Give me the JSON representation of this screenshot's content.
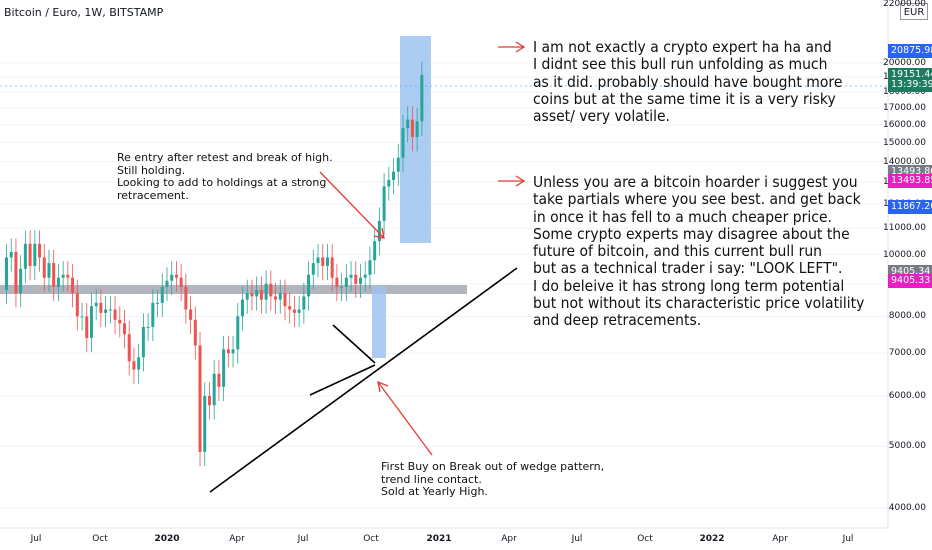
{
  "chart_data": {
    "type": "candlestick",
    "title": "Bitcoin / Euro, 1W, BITSTAMP",
    "currency": "EUR",
    "yscale": "log",
    "ylim": [
      3700,
      23000
    ],
    "y_ticks": [
      4000,
      5000,
      6000,
      7000,
      8000,
      9000,
      10000,
      11000,
      12000,
      13000,
      14000,
      15000,
      16000,
      17000,
      18000,
      19000,
      20000
    ],
    "y_tick_labels": [
      "4000.00",
      "5000.00",
      "6000.00",
      "7000.00",
      "8000.00",
      "9000.00",
      "10000.00",
      "11000.00",
      "12000.00",
      "13000.00",
      "14000.00",
      "15000.00",
      "16000.00",
      "17000.00",
      "18000.00",
      "19000.00",
      "20000.00"
    ],
    "x_ticks": [
      "Jul",
      "Oct",
      "2020",
      "Apr",
      "Jul",
      "Oct",
      "2021",
      "Apr",
      "Jul",
      "Oct",
      "2022",
      "Apr",
      "Jul"
    ],
    "colors": {
      "up": "#26a69a",
      "down": "#ef5350",
      "trend": "#000000",
      "support": "#b2b5be",
      "box": "#9ec3ef",
      "arrow": "#e53935",
      "dashed": "#2196f3"
    },
    "price_labels": [
      {
        "value": "20875.98",
        "bg": "#2962ff",
        "fg": "#ffffff",
        "price": 20876
      },
      {
        "value": "19151.44",
        "bg": "#1b7c60",
        "fg": "#ffffff",
        "price": 19151
      },
      {
        "value": "13:39:39",
        "bg": "#1b7c60",
        "fg": "#ffffff",
        "price": 18450
      },
      {
        "value": "13493.86",
        "bg": "#787b86",
        "fg": "#ffffff",
        "price": 13494
      },
      {
        "value": "13493.85",
        "bg": "#e91ec4",
        "fg": "#ffffff",
        "price": 13050
      },
      {
        "value": "11867.26",
        "bg": "#2962ff",
        "fg": "#ffffff",
        "price": 11867
      },
      {
        "value": "9405.34",
        "bg": "#787b86",
        "fg": "#ffffff",
        "price": 9405
      },
      {
        "value": "9405.33",
        "bg": "#e91ec4",
        "fg": "#ffffff",
        "price": 9100
      }
    ],
    "candles_weekly_open_close": [
      [
        8800,
        9900
      ],
      [
        9900,
        10100
      ],
      [
        10100,
        8700
      ],
      [
        8700,
        9500
      ],
      [
        9500,
        10400
      ],
      [
        10400,
        9600
      ],
      [
        9600,
        10400
      ],
      [
        10400,
        9900
      ],
      [
        9900,
        9200
      ],
      [
        9200,
        9700
      ],
      [
        9700,
        8900
      ],
      [
        8900,
        9200
      ],
      [
        9200,
        9300
      ],
      [
        9300,
        9200
      ],
      [
        9200,
        8700
      ],
      [
        8700,
        8000
      ],
      [
        8000,
        8000
      ],
      [
        8000,
        7400
      ],
      [
        7400,
        8300
      ],
      [
        8300,
        8400
      ],
      [
        8400,
        8100
      ],
      [
        8100,
        8200
      ],
      [
        8200,
        8200
      ],
      [
        8200,
        7900
      ],
      [
        7900,
        7800
      ],
      [
        7800,
        7500
      ],
      [
        7500,
        6800
      ],
      [
        6800,
        6600
      ],
      [
        6600,
        6900
      ],
      [
        6900,
        7700
      ],
      [
        7700,
        7700
      ],
      [
        7700,
        8400
      ],
      [
        8400,
        8400
      ],
      [
        8400,
        8900
      ],
      [
        8900,
        9100
      ],
      [
        9100,
        9300
      ],
      [
        9300,
        9200
      ],
      [
        9200,
        8900
      ],
      [
        8900,
        8200
      ],
      [
        8200,
        7900
      ],
      [
        7900,
        7200
      ],
      [
        7200,
        4900
      ],
      [
        4900,
        6000
      ],
      [
        6000,
        5800
      ],
      [
        5800,
        6500
      ],
      [
        6500,
        6200
      ],
      [
        6200,
        7100
      ],
      [
        7100,
        7000
      ],
      [
        7000,
        7100
      ],
      [
        7100,
        8000
      ],
      [
        8000,
        8500
      ],
      [
        8500,
        8700
      ],
      [
        8700,
        8600
      ],
      [
        8600,
        8800
      ],
      [
        8800,
        8500
      ],
      [
        8500,
        9000
      ],
      [
        9000,
        8600
      ],
      [
        8600,
        8500
      ],
      [
        8500,
        8700
      ],
      [
        8700,
        8300
      ],
      [
        8300,
        8200
      ],
      [
        8200,
        8100
      ],
      [
        8100,
        8200
      ],
      [
        8200,
        8600
      ],
      [
        8600,
        9300
      ],
      [
        9300,
        9700
      ],
      [
        9700,
        9900
      ],
      [
        9900,
        9600
      ],
      [
        9600,
        9900
      ],
      [
        9900,
        9200
      ],
      [
        9200,
        8900
      ],
      [
        8900,
        8900
      ],
      [
        8900,
        9200
      ],
      [
        9200,
        9300
      ],
      [
        9300,
        9000
      ],
      [
        9000,
        9200
      ],
      [
        9200,
        9300
      ],
      [
        9300,
        9800
      ],
      [
        9800,
        10500
      ],
      [
        10500,
        11300
      ],
      [
        11300,
        12800
      ],
      [
        12800,
        13100
      ],
      [
        13100,
        13500
      ],
      [
        13500,
        14200
      ],
      [
        14200,
        15800
      ],
      [
        15800,
        16300
      ],
      [
        16300,
        15300
      ],
      [
        15300,
        16200
      ],
      [
        16200,
        19151
      ]
    ],
    "annotations": [
      {
        "id": "reentry",
        "text": "Re entry after retest and break of high.\nStill holding.\nLooking to add to holdings at a strong\nretracement."
      },
      {
        "id": "firstbuy",
        "text": "First Buy on Break out of wedge pattern,\ntrend line contact.\nSold at Yearly High."
      },
      {
        "id": "note1",
        "text": "I am not exactly a crypto expert ha ha and\nI didnt see this bull run unfolding as much\nas it did. probably should have bought more\ncoins but at the same time it is a very risky\nasset/ very volatile."
      },
      {
        "id": "note2",
        "text": "Unless you are a bitcoin hoarder i suggest you\ntake partials where you see best. and get back\nin once it has fell to a much cheaper price.\nSome crypto experts may disagree about the\nfuture of bitcoin, and this current bull run\nbut as a technical trader i say: \"LOOK LEFT\".\nI do beleive it has strong long term potential\nbut not without its characteristic price volatility\nand deep retracements."
      }
    ],
    "support_level": 11800,
    "current_price": 19151
  },
  "top_tick_partial": "22000.00"
}
